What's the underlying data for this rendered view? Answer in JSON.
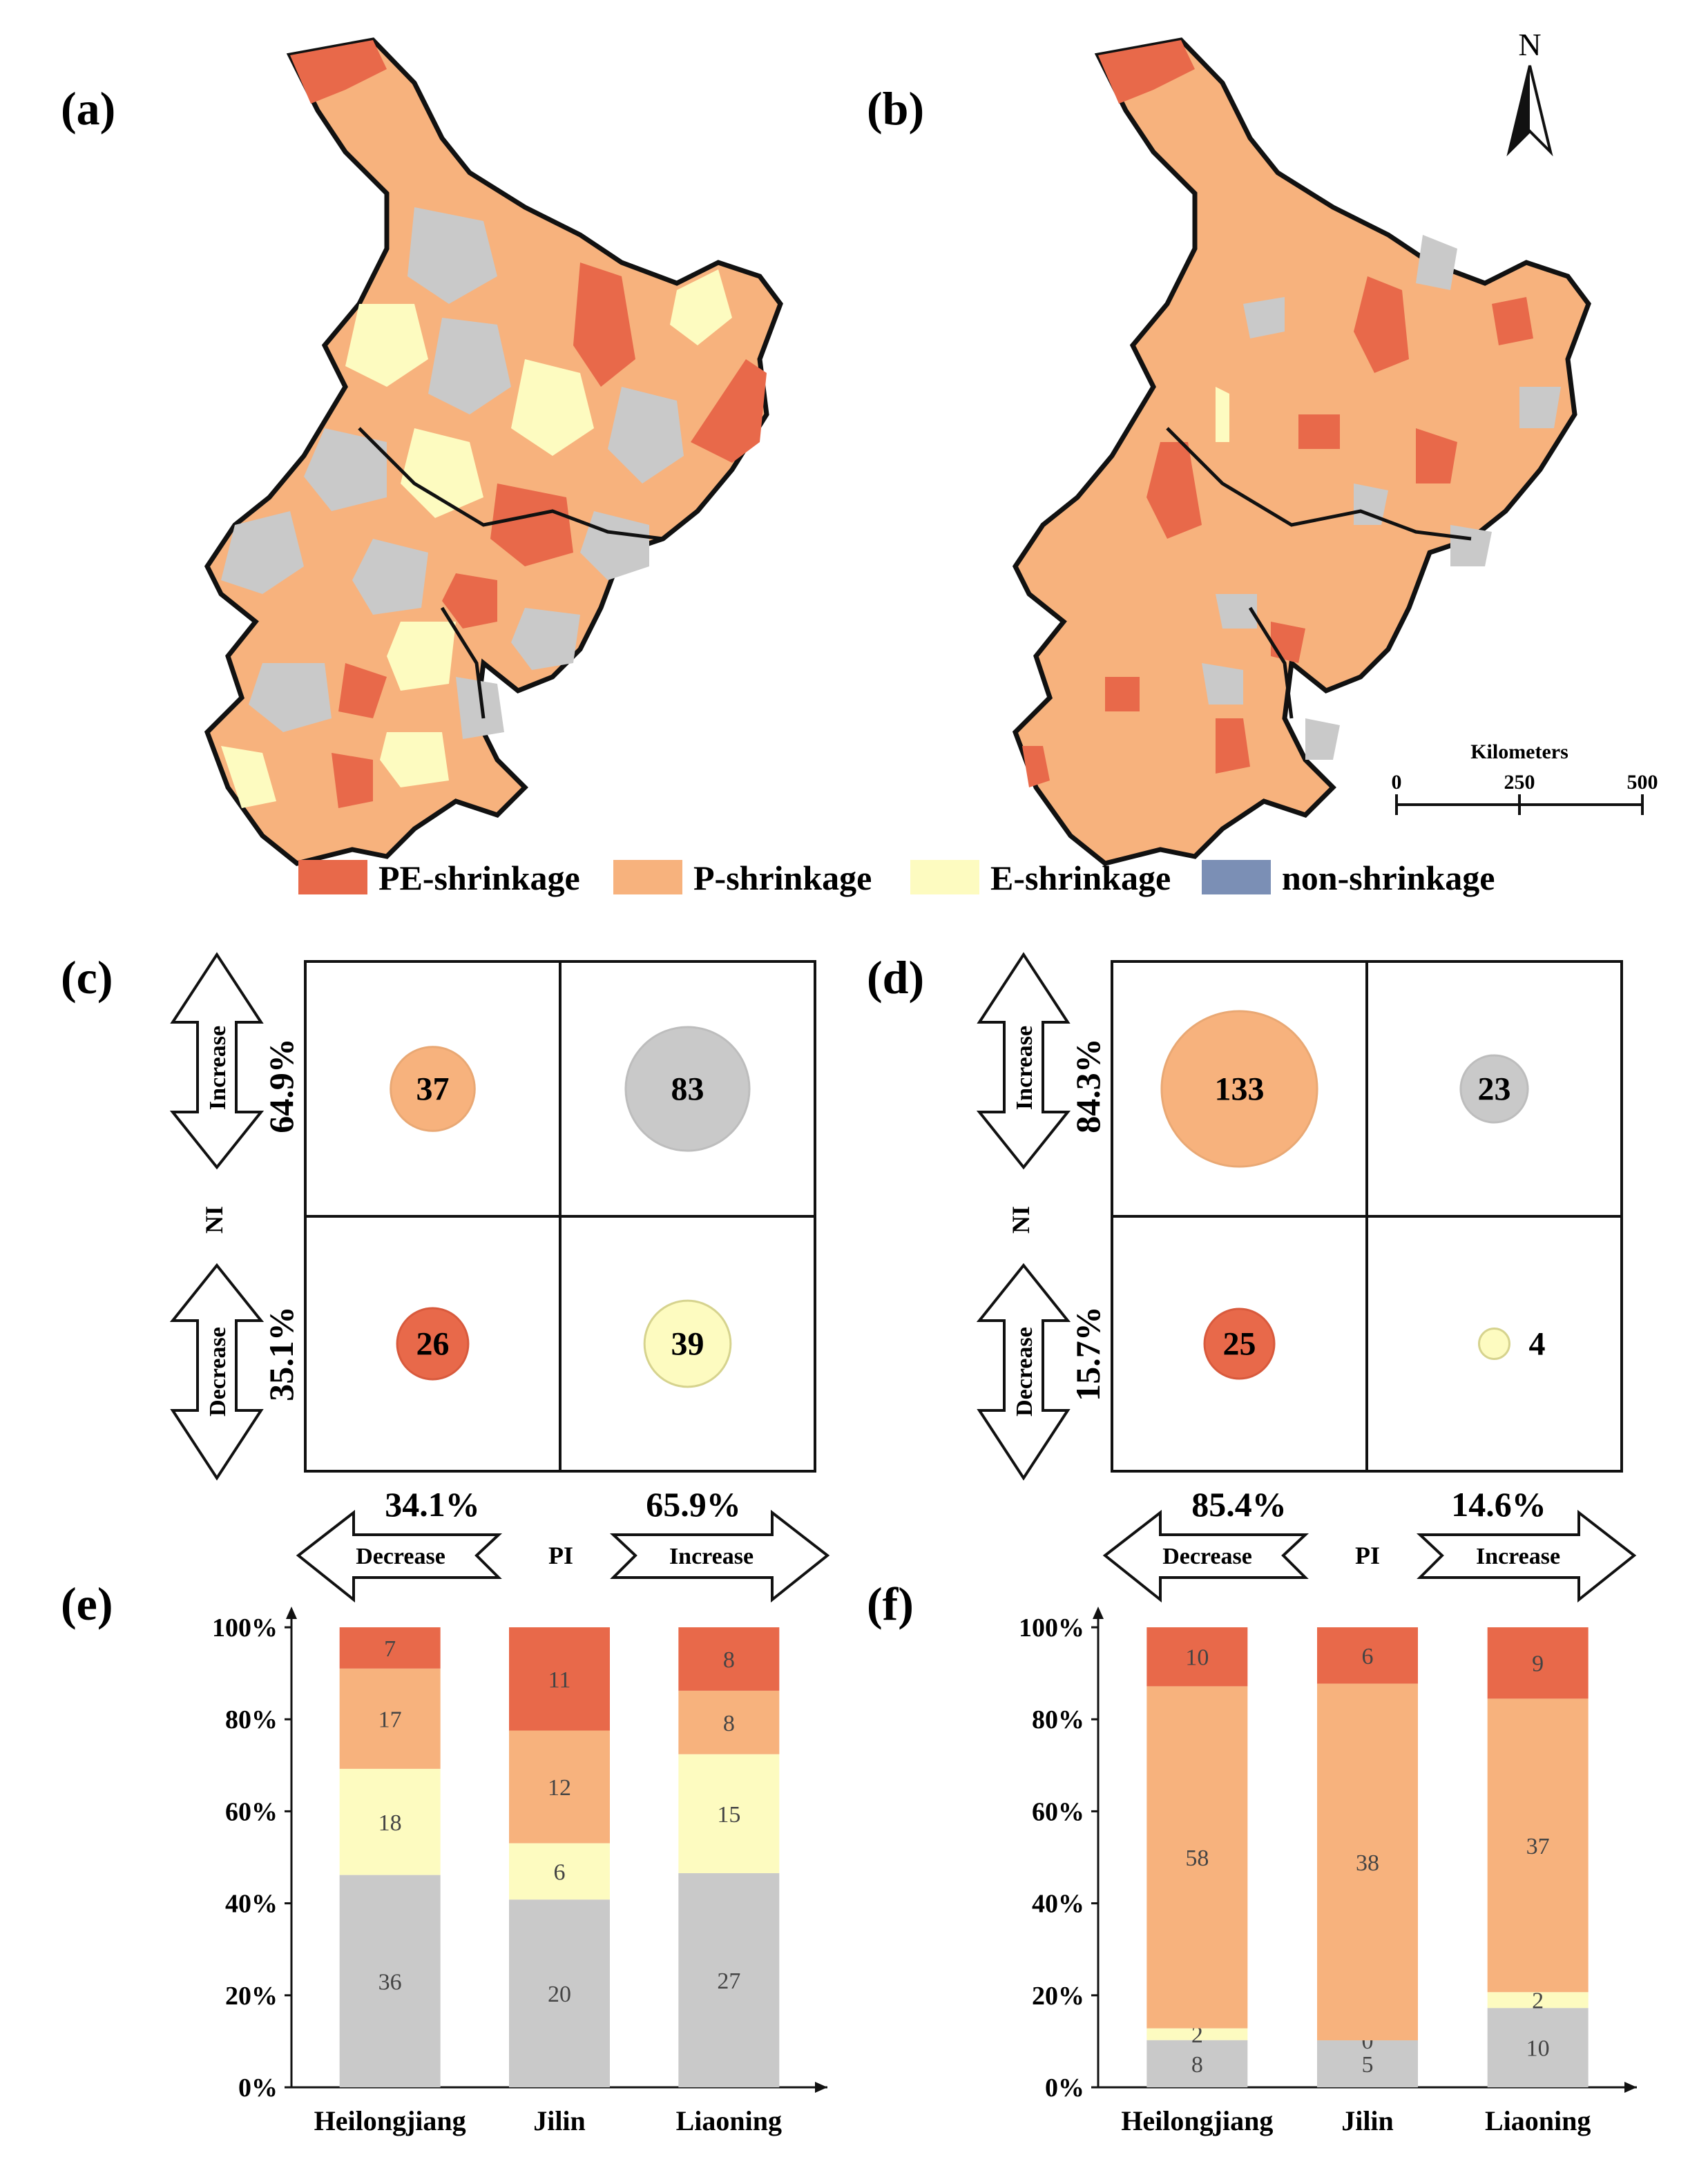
{
  "panels": {
    "a": "(a)",
    "b": "(b)",
    "c": "(c)",
    "d": "(d)",
    "e": "(e)",
    "f": "(f)"
  },
  "colors": {
    "pe": "#e8694a",
    "p": "#f7b27d",
    "e": "#fdfbc0",
    "non": "#c9c9c9",
    "legend_non": "#7b8fb5"
  },
  "legend": [
    {
      "key": "pe",
      "label": "PE-shrinkage"
    },
    {
      "key": "p",
      "label": "P-shrinkage"
    },
    {
      "key": "e",
      "label": "E-shrinkage"
    },
    {
      "key": "non",
      "label": "non-shrinkage"
    }
  ],
  "map": {
    "north_label": "N",
    "scale_title": "Kilometers",
    "scale_ticks": [
      "0",
      "250",
      "500"
    ]
  },
  "quadrants": {
    "ni_label": "NI",
    "pi_label": "PI",
    "increase": "Increase",
    "decrease": "Decrease",
    "c": {
      "ni_increase_pct": "64.9%",
      "ni_decrease_pct": "35.1%",
      "pi_decrease_pct": "34.1%",
      "pi_increase_pct": "65.9%",
      "top_left": 37,
      "top_right": 83,
      "bottom_left": 26,
      "bottom_right": 39
    },
    "d": {
      "ni_increase_pct": "84.3%",
      "ni_decrease_pct": "15.7%",
      "pi_decrease_pct": "85.4%",
      "pi_increase_pct": "14.6%",
      "top_left": 133,
      "top_right": 23,
      "bottom_left": 25,
      "bottom_right": 4
    }
  },
  "chart_data": [
    {
      "type": "bar",
      "stacked": "percent",
      "panel": "e",
      "categories": [
        "Heilongjiang",
        "Jilin",
        "Liaoning"
      ],
      "y_ticks": [
        "0%",
        "20%",
        "40%",
        "60%",
        "80%",
        "100%"
      ],
      "series": [
        {
          "name": "non-shrinkage",
          "values": [
            36,
            20,
            27
          ]
        },
        {
          "name": "E-shrinkage",
          "values": [
            18,
            6,
            15
          ]
        },
        {
          "name": "P-shrinkage",
          "values": [
            17,
            12,
            8
          ]
        },
        {
          "name": "PE-shrinkage",
          "values": [
            7,
            11,
            8
          ]
        }
      ]
    },
    {
      "type": "bar",
      "stacked": "percent",
      "panel": "f",
      "categories": [
        "Heilongjiang",
        "Jilin",
        "Liaoning"
      ],
      "y_ticks": [
        "0%",
        "20%",
        "40%",
        "60%",
        "80%",
        "100%"
      ],
      "series": [
        {
          "name": "non-shrinkage",
          "values": [
            8,
            5,
            10
          ]
        },
        {
          "name": "E-shrinkage",
          "values": [
            2,
            0,
            2
          ]
        },
        {
          "name": "P-shrinkage",
          "values": [
            58,
            38,
            37
          ]
        },
        {
          "name": "PE-shrinkage",
          "values": [
            10,
            6,
            9
          ]
        }
      ]
    }
  ]
}
